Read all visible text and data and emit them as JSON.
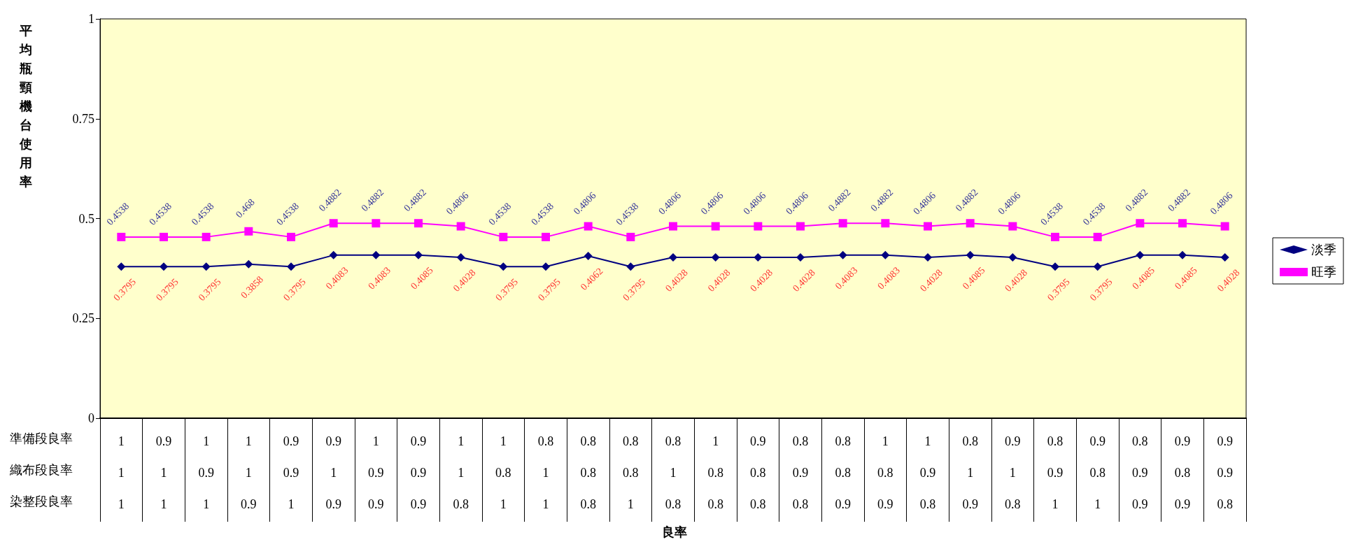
{
  "chart_data": {
    "type": "line",
    "ylabel": "平均瓶頸機台使用率",
    "annotations": [
      "準備段良率",
      "織布段良率",
      "染整段良率",
      "良率"
    ],
    "categories": [
      "1\n1\n1",
      "0.9\n1\n1",
      "1\n0.9\n1",
      "1\n1\n0.9",
      "0.9\n0.9\n1",
      "0.9\n1\n0.9",
      "1\n0.9\n0.9",
      "0.9\n0.9\n0.9",
      "1\n1\n0.8",
      "1\n0.8\n1",
      "0.8\n1\n1",
      "0.8\n0.8\n0.8",
      "0.8\n0.8\n1",
      "0.8\n1\n0.8",
      "1\n0.8\n0.8",
      "0.9\n0.8\n0.8",
      "0.8\n0.9\n0.8",
      "0.8\n0.8\n0.9",
      "1\n0.8\n0.9",
      "1\n0.9\n0.8",
      "0.8\n1\n0.9",
      "0.9\n1\n0.8",
      "0.8\n0.9\n1",
      "0.9\n0.8\n1",
      "0.8\n0.9\n0.9",
      "0.9\n0.8\n0.9",
      "0.9\n0.9\n0.8"
    ],
    "series": [
      {
        "name": "淡季",
        "color": "#000080",
        "marker": "diamond",
        "values": [
          0.3795,
          0.3795,
          0.3795,
          0.3858,
          0.3795,
          0.4083,
          0.4083,
          0.4085,
          0.4028,
          0.3795,
          0.3795,
          0.4062,
          0.3795,
          0.4028,
          0.4028,
          0.4028,
          0.4028,
          0.4083,
          0.4083,
          0.4028,
          0.4085,
          0.4028,
          0.3795,
          0.3795,
          0.4085,
          0.4085,
          0.4028
        ]
      },
      {
        "name": "旺季",
        "color": "#ff00ff",
        "marker": "square",
        "values": [
          0.4538,
          0.4538,
          0.4538,
          0.468,
          0.4538,
          0.4882,
          0.4882,
          0.4882,
          0.4806,
          0.4538,
          0.4538,
          0.4806,
          0.4538,
          0.4806,
          0.4806,
          0.4806,
          0.4806,
          0.4882,
          0.4882,
          0.4806,
          0.4882,
          0.4806,
          0.4538,
          0.4538,
          0.4882,
          0.4882,
          0.4806
        ]
      }
    ],
    "ylim": [
      0,
      1
    ],
    "yticks": [
      0,
      0.25,
      0.5,
      0.75,
      1
    ],
    "grid": false,
    "legend": "right",
    "data_labels": true
  }
}
